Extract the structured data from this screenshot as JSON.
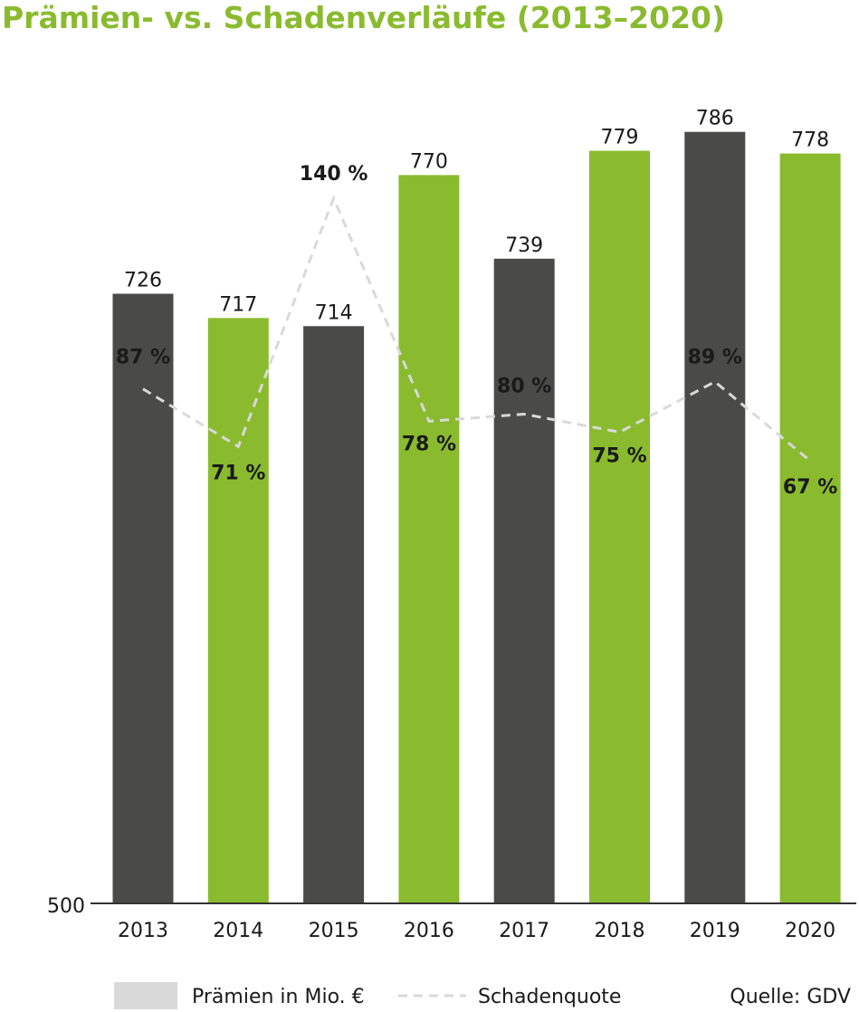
{
  "chart_data": {
    "type": "bar",
    "title": "Prämien- vs. Schadenverläufe (2013–2020)",
    "categories": [
      "2013",
      "2014",
      "2015",
      "2016",
      "2017",
      "2018",
      "2019",
      "2020"
    ],
    "series": [
      {
        "name": "Prämien in Mio. €",
        "type": "bar",
        "values": [
          726,
          717,
          714,
          770,
          739,
          779,
          786,
          778
        ],
        "value_labels": [
          "726",
          "717",
          "714",
          "770",
          "739",
          "779",
          "786",
          "778"
        ]
      },
      {
        "name": "Schadenquote",
        "type": "line",
        "style": "dashed",
        "values": [
          87,
          71,
          140,
          78,
          80,
          75,
          89,
          67
        ],
        "value_labels": [
          "87 %",
          "71 %",
          "140 %",
          "78 %",
          "80 %",
          "75 %",
          "89 %",
          "67 %"
        ]
      }
    ],
    "y_axis": {
      "baseline_label": "500",
      "min": 500,
      "max": 800
    },
    "grid": false,
    "legend": {
      "placement": "bottom"
    },
    "source": "Quelle: GDV",
    "colors": {
      "title": "#8abb2f",
      "bar_dark": "#4a4a49",
      "bar_green": "#8abb2f",
      "line": "#d9d9d9",
      "legend_swatch": "#d9d9d9",
      "axis": "#333333"
    }
  }
}
